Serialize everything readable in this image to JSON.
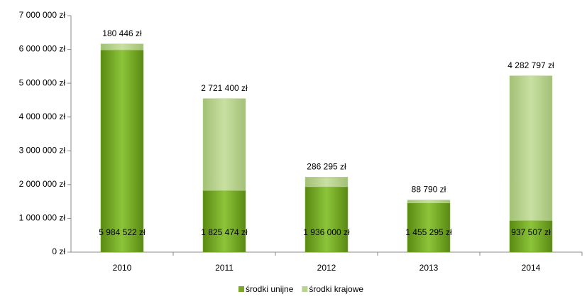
{
  "chart_data": {
    "type": "stacked_bar",
    "categories": [
      "2010",
      "2011",
      "2012",
      "2013",
      "2014"
    ],
    "series": [
      {
        "name": "środki unijne",
        "color": "#7aa62a",
        "values": [
          5984522,
          1825474,
          1936000,
          1455295,
          937507
        ],
        "value_labels": [
          "5 984 522 zł",
          "1 825 474 zł",
          "1 936 000 zł",
          "1 455 295 zł",
          "937 507 zł"
        ]
      },
      {
        "name": "środki krajowe",
        "color": "#b9d48e",
        "values": [
          180446,
          2721400,
          286295,
          88790,
          4282797
        ],
        "value_labels": [
          "180 446 zł",
          "2 721 400 zł",
          "286 295 zł",
          "88 790 zł",
          "4 282 797 zł"
        ]
      }
    ],
    "ylim": [
      0,
      7000000
    ],
    "yticks": [
      {
        "value": 0,
        "label": "0 zł"
      },
      {
        "value": 1000000,
        "label": "1 000 000 zł"
      },
      {
        "value": 2000000,
        "label": "2 000 000 zł"
      },
      {
        "value": 3000000,
        "label": "3 000 000 zł"
      },
      {
        "value": 4000000,
        "label": "4 000 000 zł"
      },
      {
        "value": 5000000,
        "label": "5 000 000 zł"
      },
      {
        "value": 6000000,
        "label": "6 000 000 zł"
      },
      {
        "value": 7000000,
        "label": "7 000 000 zł"
      }
    ],
    "legend": "bottom"
  }
}
